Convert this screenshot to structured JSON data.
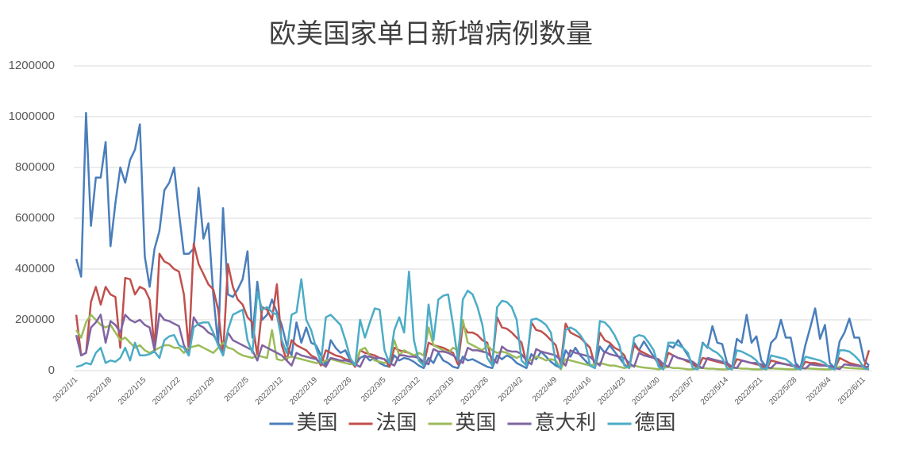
{
  "chart_data": {
    "type": "line",
    "title": "欧美国家单日新增病例数量",
    "categories": [
      "2022/1/1",
      null,
      null,
      null,
      null,
      null,
      null,
      "2022/1/8",
      null,
      null,
      null,
      null,
      null,
      null,
      "2022/1/15",
      null,
      null,
      null,
      null,
      null,
      null,
      "2022/1/22",
      null,
      null,
      null,
      null,
      null,
      null,
      "2022/1/29",
      null,
      null,
      null,
      null,
      null,
      null,
      "2022/2/5",
      null,
      null,
      null,
      null,
      null,
      null,
      "2022/2/12",
      null,
      null,
      null,
      null,
      null,
      null,
      "2022/2/19",
      null,
      null,
      null,
      null,
      null,
      null,
      "2022/2/26",
      null,
      null,
      null,
      null,
      null,
      null,
      "2022/3/5",
      null,
      null,
      null,
      null,
      null,
      null,
      "2022/3/12",
      null,
      null,
      null,
      null,
      null,
      null,
      "2022/3/19",
      null,
      null,
      null,
      null,
      null,
      null,
      "2022/3/26",
      null,
      null,
      null,
      null,
      null,
      null,
      "2022/4/2",
      null,
      null,
      null,
      null,
      null,
      null,
      "2022/4/9",
      null,
      null,
      null,
      null,
      null,
      null,
      "2022/4/16",
      null,
      null,
      null,
      null,
      null,
      null,
      "2022/4/23",
      null,
      null,
      null,
      null,
      null,
      null,
      "2022/4/30",
      null,
      null,
      null,
      null,
      null,
      null,
      "2022/5/7",
      null,
      null,
      null,
      null,
      null,
      null,
      "2022/5/14",
      null,
      null,
      null,
      null,
      null,
      null,
      "2022/5/21",
      null,
      null,
      null,
      null,
      null,
      null,
      "2022/5/28",
      null,
      null,
      null,
      null,
      null,
      null,
      "2022/6/4",
      null,
      null,
      null,
      null,
      null,
      null,
      "2022/6/11",
      null
    ],
    "ylim": [
      0,
      1200000
    ],
    "yticks": [
      0,
      200000,
      400000,
      600000,
      800000,
      1000000,
      1200000
    ],
    "grid": true,
    "legend": "bottom",
    "series": [
      {
        "name": "美国",
        "color": "#4a7ebb",
        "values": [
          440000,
          370000,
          1015000,
          570000,
          760000,
          760000,
          900000,
          490000,
          660000,
          800000,
          740000,
          830000,
          870000,
          970000,
          450000,
          330000,
          480000,
          550000,
          710000,
          740000,
          800000,
          620000,
          460000,
          460000,
          480000,
          720000,
          520000,
          580000,
          300000,
          100000,
          640000,
          300000,
          290000,
          320000,
          360000,
          470000,
          130000,
          350000,
          200000,
          220000,
          280000,
          230000,
          180000,
          100000,
          60000,
          190000,
          110000,
          170000,
          110000,
          100000,
          60000,
          20000,
          120000,
          90000,
          70000,
          80000,
          40000,
          20000,
          50000,
          60000,
          40000,
          50000,
          30000,
          20000,
          15000,
          60000,
          40000,
          50000,
          45000,
          35000,
          20000,
          10000,
          50000,
          30000,
          70000,
          40000,
          30000,
          15000,
          10000,
          55000,
          40000,
          45000,
          35000,
          25000,
          15000,
          10000,
          60000,
          45000,
          60000,
          50000,
          30000,
          20000,
          10000,
          65000,
          45000,
          75000,
          55000,
          35000,
          20000,
          10000,
          80000,
          55000,
          90000,
          60000,
          40000,
          20000,
          10000,
          95000,
          70000,
          100000,
          75000,
          50000,
          25000,
          10000,
          110000,
          80000,
          115000,
          85000,
          55000,
          25000,
          10000,
          100000,
          90000,
          120000,
          90000,
          60000,
          25000,
          10000,
          110000,
          90000,
          175000,
          110000,
          105000,
          30000,
          10000,
          125000,
          110000,
          220000,
          110000,
          135000,
          40000,
          15000,
          110000,
          130000,
          200000,
          130000,
          130000,
          30000,
          10000,
          100000,
          170000,
          245000,
          125000,
          180000,
          30000,
          10000,
          115000,
          150000,
          205000,
          130000,
          130000,
          40000,
          20000
        ]
      },
      {
        "name": "法国",
        "color": "#c0504d",
        "values": [
          220000,
          60000,
          70000,
          270000,
          330000,
          260000,
          330000,
          300000,
          290000,
          90000,
          365000,
          360000,
          300000,
          330000,
          320000,
          280000,
          90000,
          460000,
          430000,
          420000,
          400000,
          390000,
          300000,
          80000,
          500000,
          420000,
          380000,
          340000,
          320000,
          240000,
          60000,
          420000,
          330000,
          280000,
          260000,
          210000,
          190000,
          60000,
          250000,
          240000,
          200000,
          340000,
          100000,
          40000,
          120000,
          100000,
          90000,
          80000,
          60000,
          50000,
          20000,
          80000,
          70000,
          60000,
          55000,
          45000,
          40000,
          15000,
          80000,
          70000,
          65000,
          60000,
          50000,
          45000,
          15000,
          90000,
          80000,
          75000,
          70000,
          60000,
          50000,
          20000,
          110000,
          100000,
          95000,
          90000,
          80000,
          70000,
          25000,
          180000,
          150000,
          150000,
          140000,
          120000,
          110000,
          30000,
          210000,
          170000,
          165000,
          150000,
          130000,
          110000,
          30000,
          190000,
          160000,
          155000,
          140000,
          120000,
          100000,
          25000,
          185000,
          150000,
          140000,
          130000,
          110000,
          90000,
          20000,
          150000,
          120000,
          110000,
          90000,
          80000,
          60000,
          15000,
          100000,
          80000,
          70000,
          60000,
          50000,
          40000,
          10000,
          70000,
          60000,
          50000,
          45000,
          35000,
          30000,
          8000,
          50000,
          45000,
          40000,
          35000,
          30000,
          25000,
          5000,
          45000,
          40000,
          35000,
          30000,
          25000,
          20000,
          5000,
          40000,
          35000,
          30000,
          25000,
          20000,
          15000,
          5000,
          35000,
          30000,
          30000,
          25000,
          20000,
          15000,
          5000,
          50000,
          40000,
          30000,
          25000,
          20000,
          15000,
          80000
        ]
      },
      {
        "name": "英国",
        "color": "#9bbb59",
        "values": [
          160000,
          130000,
          190000,
          220000,
          200000,
          180000,
          170000,
          180000,
          150000,
          120000,
          130000,
          110000,
          90000,
          100000,
          80000,
          70000,
          80000,
          90000,
          100000,
          100000,
          90000,
          90000,
          70000,
          90000,
          95000,
          100000,
          90000,
          80000,
          70000,
          90000,
          110000,
          90000,
          85000,
          70000,
          60000,
          55000,
          50000,
          60000,
          55000,
          50000,
          160000,
          45000,
          40000,
          50000,
          55000,
          50000,
          45000,
          40000,
          35000,
          30000,
          30000,
          40000,
          45000,
          40000,
          35000,
          30000,
          25000,
          30000,
          80000,
          90000,
          60000,
          40000,
          35000,
          30000,
          40000,
          120000,
          60000,
          80000,
          70000,
          60000,
          70000,
          60000,
          170000,
          100000,
          90000,
          80000,
          70000,
          90000,
          80000,
          200000,
          110000,
          100000,
          90000,
          80000,
          100000,
          80000,
          70000,
          75000,
          70000,
          60000,
          50000,
          60000,
          45000,
          40000,
          55000,
          50000,
          40000,
          45000,
          40000,
          5000,
          45000,
          40000,
          35000,
          30000,
          25000,
          20000,
          25000,
          30000,
          25000,
          20000,
          20000,
          15000,
          10000,
          15000,
          20000,
          15000,
          12000,
          10000,
          8000,
          5000,
          10000,
          15000,
          10000,
          10000,
          8000,
          5000,
          5000,
          10000,
          10000,
          8000,
          8000,
          6000,
          5000,
          5000,
          10000,
          10000,
          8000,
          8000,
          6000,
          5000,
          5000,
          8000,
          9000,
          8000,
          7000,
          6000,
          5000,
          5000,
          8000,
          9000,
          8000,
          7000,
          6000,
          5000,
          5000,
          8000,
          15000,
          12000,
          10000,
          9000,
          8000,
          7000,
          6000
        ]
      },
      {
        "name": "意大利",
        "color": "#8064a2",
        "values": [
          140000,
          60000,
          70000,
          170000,
          190000,
          220000,
          110000,
          195000,
          180000,
          150000,
          220000,
          200000,
          190000,
          200000,
          180000,
          170000,
          80000,
          225000,
          200000,
          195000,
          185000,
          175000,
          100000,
          60000,
          210000,
          180000,
          170000,
          150000,
          140000,
          110000,
          60000,
          150000,
          120000,
          110000,
          100000,
          90000,
          80000,
          40000,
          100000,
          90000,
          80000,
          70000,
          60000,
          40000,
          20000,
          70000,
          60000,
          55000,
          50000,
          45000,
          30000,
          15000,
          50000,
          45000,
          40000,
          40000,
          35000,
          25000,
          15000,
          55000,
          55000,
          50000,
          50000,
          45000,
          30000,
          20000,
          60000,
          60000,
          55000,
          55000,
          50000,
          35000,
          25000,
          85000,
          75000,
          75000,
          70000,
          60000,
          45000,
          30000,
          90000,
          80000,
          80000,
          75000,
          70000,
          50000,
          30000,
          95000,
          80000,
          75000,
          75000,
          65000,
          40000,
          25000,
          85000,
          75000,
          70000,
          65000,
          60000,
          40000,
          20000,
          80000,
          70000,
          65000,
          60000,
          55000,
          35000,
          20000,
          75000,
          65000,
          60000,
          55000,
          50000,
          30000,
          15000,
          70000,
          60000,
          55000,
          50000,
          45000,
          25000,
          15000,
          60000,
          50000,
          45000,
          40000,
          35000,
          20000,
          10000,
          50000,
          45000,
          40000,
          35000,
          30000,
          15000,
          10000,
          40000,
          35000,
          30000,
          30000,
          25000,
          15000,
          10000,
          30000,
          28000,
          25000,
          22000,
          20000,
          12000,
          8000,
          25000,
          22000,
          20000,
          20000,
          18000,
          10000,
          6000,
          25000,
          22000,
          20000,
          18000,
          15000,
          15000
        ]
      },
      {
        "name": "德国",
        "color": "#4bacc6",
        "values": [
          15000,
          20000,
          30000,
          25000,
          70000,
          90000,
          30000,
          40000,
          35000,
          50000,
          90000,
          40000,
          110000,
          60000,
          60000,
          65000,
          75000,
          50000,
          120000,
          135000,
          140000,
          100000,
          90000,
          60000,
          170000,
          185000,
          190000,
          190000,
          150000,
          100000,
          60000,
          160000,
          220000,
          230000,
          240000,
          120000,
          70000,
          310000,
          240000,
          250000,
          230000,
          220000,
          120000,
          70000,
          220000,
          230000,
          360000,
          200000,
          160000,
          90000,
          30000,
          210000,
          220000,
          200000,
          180000,
          120000,
          50000,
          20000,
          200000,
          130000,
          190000,
          245000,
          240000,
          80000,
          30000,
          160000,
          210000,
          150000,
          390000,
          120000,
          40000,
          20000,
          260000,
          120000,
          280000,
          295000,
          300000,
          180000,
          40000,
          280000,
          315000,
          300000,
          250000,
          180000,
          50000,
          20000,
          250000,
          275000,
          270000,
          250000,
          200000,
          40000,
          20000,
          200000,
          205000,
          195000,
          180000,
          150000,
          30000,
          10000,
          160000,
          170000,
          160000,
          140000,
          110000,
          20000,
          10000,
          195000,
          190000,
          170000,
          140000,
          100000,
          20000,
          10000,
          130000,
          140000,
          135000,
          110000,
          80000,
          15000,
          5000,
          110000,
          110000,
          100000,
          90000,
          70000,
          10000,
          5000,
          105000,
          95000,
          80000,
          70000,
          50000,
          10000,
          5000,
          80000,
          75000,
          65000,
          55000,
          40000,
          10000,
          5000,
          60000,
          55000,
          50000,
          45000,
          30000,
          10000,
          5000,
          55000,
          50000,
          45000,
          40000,
          30000,
          10000,
          5000,
          80000,
          80000,
          75000,
          60000,
          40000,
          10000,
          5000
        ]
      }
    ]
  }
}
